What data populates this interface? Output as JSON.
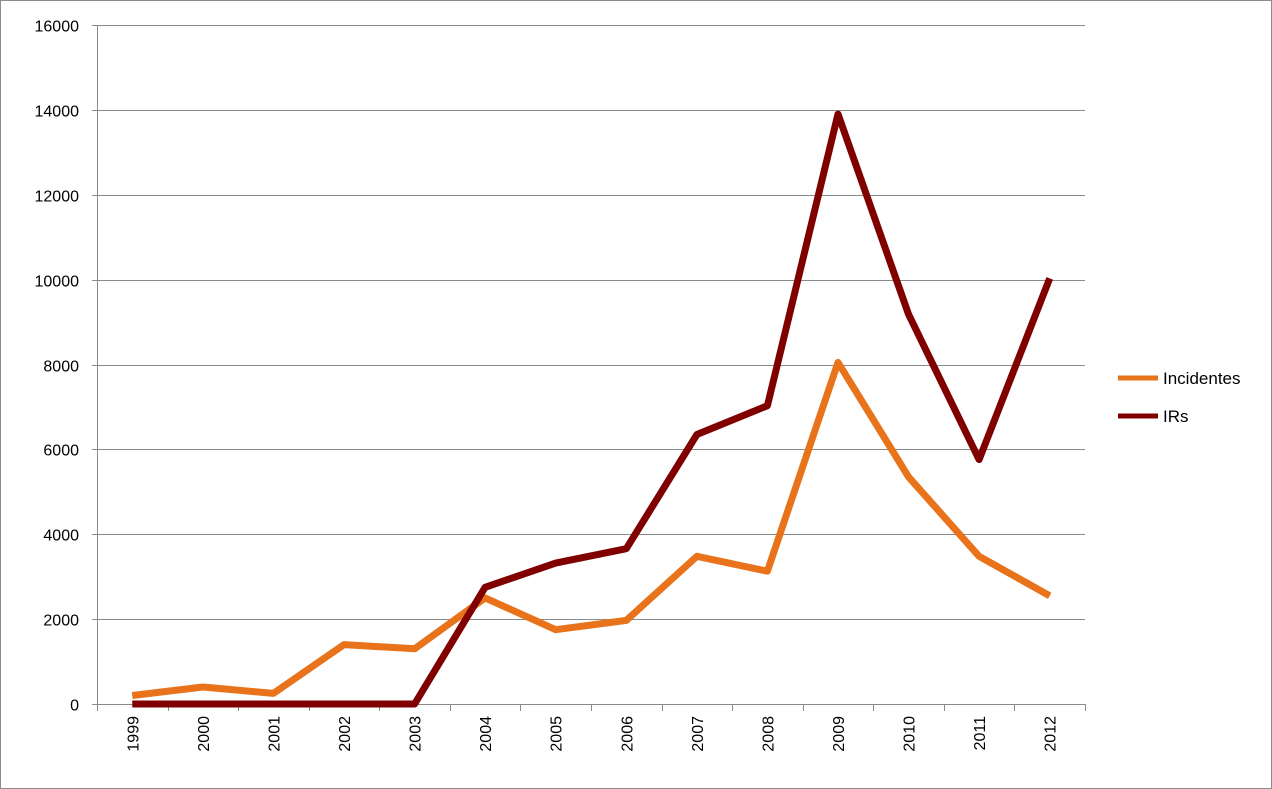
{
  "chart_data": {
    "type": "line",
    "title": "",
    "xlabel": "",
    "ylabel": "",
    "categories": [
      "1999",
      "2000",
      "2001",
      "2002",
      "2003",
      "2004",
      "2005",
      "2006",
      "2007",
      "2008",
      "2009",
      "2010",
      "2011",
      "2012"
    ],
    "ylim": [
      0,
      16000
    ],
    "yticks": [
      0,
      2000,
      4000,
      6000,
      8000,
      10000,
      12000,
      14000,
      16000
    ],
    "grid": true,
    "legend_position": "right",
    "series": [
      {
        "name": "Incidentes",
        "color": "#E8731A",
        "values": [
          200,
          400,
          250,
          1400,
          1300,
          2500,
          1750,
          1970,
          3480,
          3130,
          8050,
          5350,
          3480,
          2550
        ]
      },
      {
        "name": "IRs",
        "color": "#800000",
        "values": [
          0,
          0,
          0,
          0,
          0,
          2750,
          3320,
          3660,
          6350,
          7030,
          13900,
          9180,
          5760,
          10030
        ]
      }
    ]
  }
}
